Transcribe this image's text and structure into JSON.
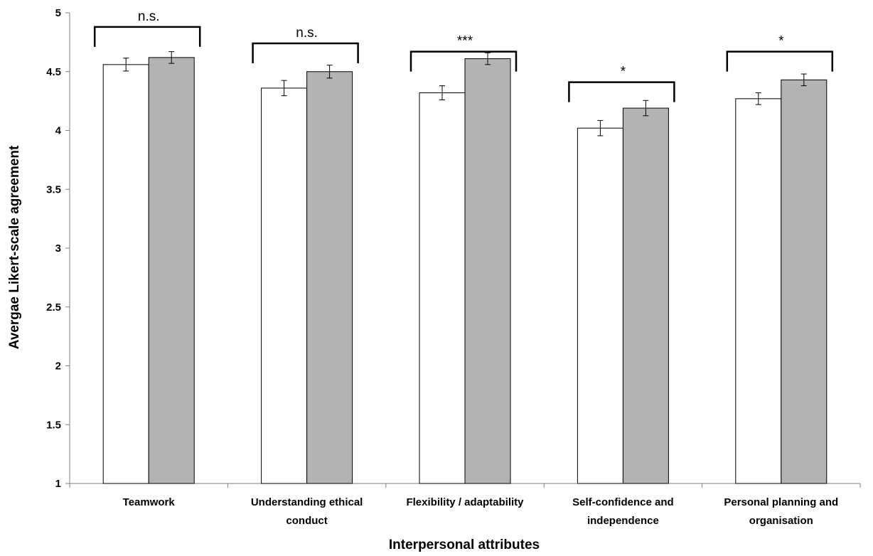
{
  "chart_data": {
    "type": "bar",
    "categories": [
      [
        "Teamwork"
      ],
      [
        "Understanding ethical",
        "conduct"
      ],
      [
        "Flexibility / adaptability"
      ],
      [
        "Self-confidence and",
        "independence"
      ],
      [
        "Personal planning and",
        "organisation"
      ]
    ],
    "series": [
      {
        "values": [
          4.56,
          4.36,
          4.32,
          4.02,
          4.27
        ],
        "errors": [
          0.055,
          0.065,
          0.06,
          0.065,
          0.05
        ],
        "color": "#ffffff"
      },
      {
        "values": [
          4.62,
          4.5,
          4.61,
          4.19,
          4.43
        ],
        "errors": [
          0.05,
          0.055,
          0.05,
          0.065,
          0.05
        ],
        "color": "#b3b3b3"
      }
    ],
    "significance": [
      "n.s.",
      "n.s.",
      "***",
      "*",
      "*"
    ],
    "significance_y": [
      4.88,
      4.74,
      4.67,
      4.41,
      4.67
    ],
    "xlabel": "Interpersonal attributes",
    "ylabel": "Avergae Likert-scale agreement",
    "ylim": [
      1,
      5
    ],
    "yticks": [
      1,
      1.5,
      2,
      2.5,
      3,
      3.5,
      4,
      4.5,
      5
    ],
    "grid": false,
    "legend": "none"
  }
}
